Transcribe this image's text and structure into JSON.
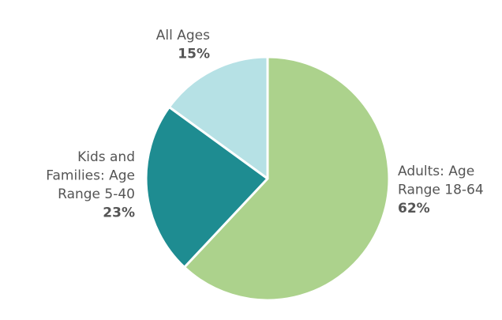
{
  "chart_data": {
    "type": "pie",
    "title": "",
    "categories": [
      "Adults: Age Range 18-64",
      "Kids and Families: Age Range 5-40",
      "All Ages"
    ],
    "values": [
      62,
      23,
      15
    ],
    "slices": [
      {
        "label_lines": [
          "Adults: Age",
          "Range 18-64"
        ],
        "value": 62,
        "value_label": "62%",
        "color": "#acd28c"
      },
      {
        "label_lines": [
          "Kids and",
          "Families: Age",
          "Range 5-40"
        ],
        "value": 23,
        "value_label": "23%",
        "color": "#1e8c91"
      },
      {
        "label_lines": [
          "All Ages"
        ],
        "value": 15,
        "value_label": "15%",
        "color": "#b6e1e5"
      }
    ],
    "start": "12 o'clock",
    "direction": "clockwise",
    "legend": "none",
    "label_color": "#555555"
  }
}
